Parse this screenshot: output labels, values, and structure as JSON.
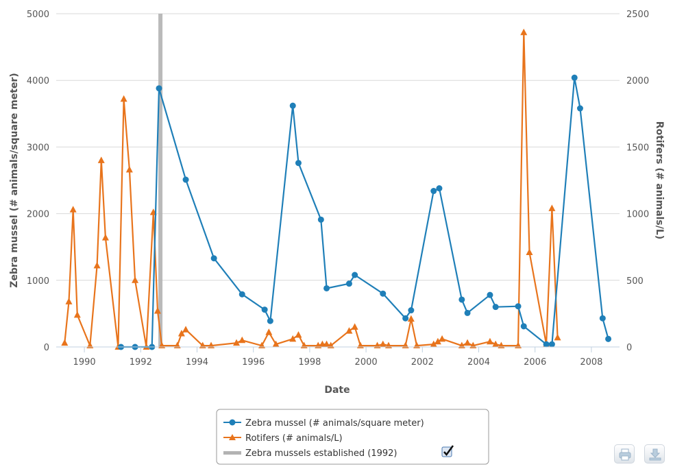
{
  "chart_data": {
    "type": "line",
    "title": "",
    "xlabel": "Date",
    "ylabel": "Zebra mussel (# animals/square meter)",
    "ylabel_right": "Rotifers (# animals/L)",
    "xlim": [
      1989.0,
      2009.0
    ],
    "ylim": [
      0,
      5000
    ],
    "ylim_right": [
      0,
      2500
    ],
    "x_ticks": [
      "1990",
      "1992",
      "1994",
      "1996",
      "1998",
      "2000",
      "2002",
      "2004",
      "2006",
      "2008"
    ],
    "y_ticks": [
      "0",
      "1000",
      "2000",
      "3000",
      "4000",
      "5000"
    ],
    "y_ticks_right": [
      "0",
      "500",
      "1000",
      "1500",
      "2000",
      "2500"
    ],
    "grid": true,
    "legend_position": "bottom-center",
    "series": [
      {
        "name": "Zebra mussel (# animals/square meter)",
        "axis": "left",
        "color": "#1f7fb8",
        "marker": "circle",
        "x": [
          1991.3,
          1991.8,
          1992.4,
          1992.65,
          1993.6,
          1994.6,
          1995.6,
          1996.4,
          1996.6,
          1997.4,
          1997.6,
          1998.4,
          1998.6,
          1999.4,
          1999.6,
          2000.6,
          2001.4,
          2001.6,
          2002.4,
          2002.6,
          2003.4,
          2003.6,
          2004.4,
          2004.6,
          2005.4,
          2005.6,
          2006.4,
          2006.6,
          2007.4,
          2007.6,
          2008.4,
          2008.6
        ],
        "values": [
          0,
          0,
          0,
          3880,
          2510,
          1330,
          790,
          560,
          390,
          3620,
          2760,
          1910,
          880,
          950,
          1080,
          800,
          430,
          550,
          2340,
          2380,
          710,
          510,
          780,
          600,
          610,
          310,
          40,
          40,
          4040,
          3580,
          430,
          120
        ]
      },
      {
        "name": "Rotifers (# animals/L)",
        "axis": "right",
        "color": "#e8741c",
        "marker": "triangle",
        "x": [
          1989.3,
          1989.45,
          1989.6,
          1989.75,
          1990.2,
          1990.45,
          1990.6,
          1990.75,
          1991.2,
          1991.4,
          1991.6,
          1991.8,
          1992.2,
          1992.45,
          1992.6,
          1992.75,
          1993.3,
          1993.45,
          1993.6,
          1994.2,
          1994.5,
          1995.4,
          1995.6,
          1996.3,
          1996.55,
          1996.8,
          1997.4,
          1997.6,
          1997.8,
          1998.3,
          1998.45,
          1998.6,
          1998.75,
          1999.4,
          1999.6,
          1999.8,
          2000.4,
          2000.6,
          2000.8,
          2001.4,
          2001.6,
          2001.8,
          2002.4,
          2002.55,
          2002.7,
          2003.4,
          2003.6,
          2003.8,
          2004.4,
          2004.6,
          2004.8,
          2005.4,
          2005.6,
          2005.8,
          2006.4,
          2006.6,
          2006.8
        ],
        "values": [
          30,
          340,
          1030,
          240,
          10,
          610,
          1400,
          820,
          0,
          1860,
          1330,
          500,
          0,
          1010,
          270,
          10,
          10,
          100,
          130,
          10,
          10,
          30,
          50,
          10,
          110,
          20,
          60,
          90,
          10,
          10,
          20,
          20,
          10,
          120,
          150,
          10,
          10,
          20,
          10,
          10,
          210,
          10,
          20,
          40,
          60,
          10,
          30,
          10,
          40,
          20,
          10,
          10,
          2360,
          710,
          20,
          1040,
          70
        ]
      }
    ],
    "annotations": [
      {
        "name": "Zebra mussels established (1992)",
        "type": "vertical-band",
        "x": 1992.7,
        "color": "#b3b3b3"
      }
    ]
  },
  "legend": {
    "items": [
      {
        "label": "Zebra mussel (# animals/square meter)",
        "color": "#1f7fb8",
        "marker": "circle"
      },
      {
        "label": "Rotifers (# animals/L)",
        "color": "#e8741c",
        "marker": "triangle"
      },
      {
        "label": "Zebra mussels established (1992)",
        "color": "#b3b3b3",
        "marker": "band",
        "checked": true
      }
    ]
  },
  "toolbar": {
    "print_icon": "print-icon",
    "export_icon": "download-icon"
  }
}
